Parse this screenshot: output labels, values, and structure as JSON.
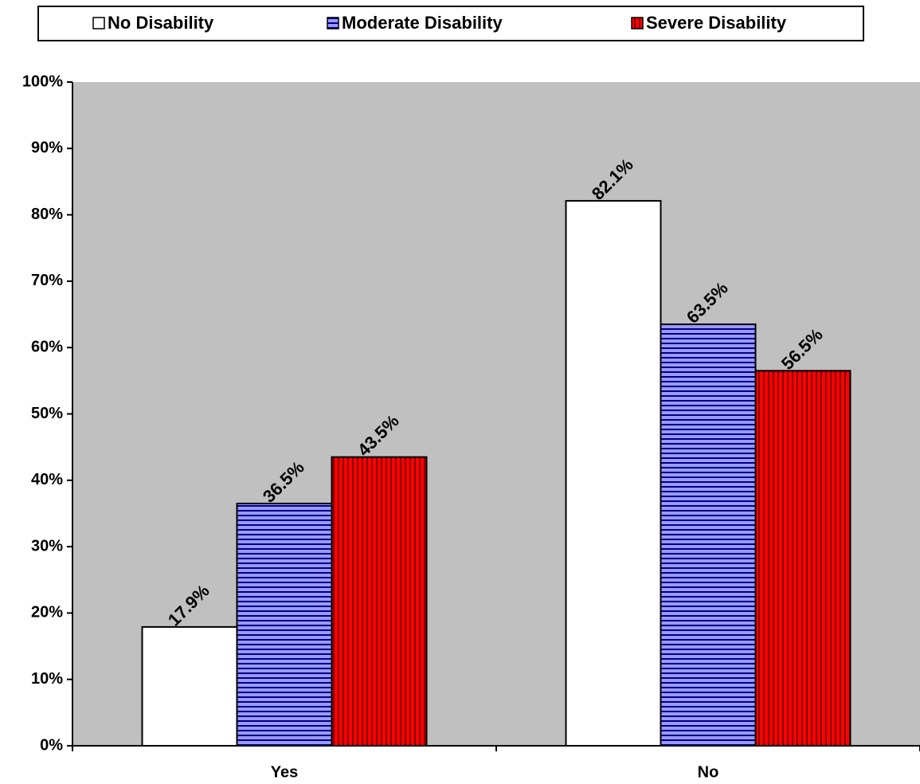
{
  "chart_data": {
    "type": "bar",
    "title": "",
    "xlabel": "",
    "ylabel": "",
    "categories": [
      "Yes",
      "No"
    ],
    "series": [
      {
        "name": "No Disability",
        "values": [
          17.9,
          82.1
        ],
        "labels": [
          "17.9%",
          "82.1%"
        ],
        "color": "#ffffff",
        "pattern": "none"
      },
      {
        "name": "Moderate Disability",
        "values": [
          36.5,
          63.5
        ],
        "labels": [
          "36.5%",
          "63.5%"
        ],
        "color": "#9999ff",
        "pattern": "horizontal-stripes"
      },
      {
        "name": "Severe Disability",
        "values": [
          43.5,
          56.5
        ],
        "labels": [
          "43.5%",
          "56.5%"
        ],
        "color": "#ff0000",
        "pattern": "vertical-stripes"
      }
    ],
    "ylim": [
      0,
      100
    ],
    "yticks": [
      0,
      10,
      20,
      30,
      40,
      50,
      60,
      70,
      80,
      90,
      100
    ],
    "ytick_labels": [
      "0%",
      "10%",
      "20%",
      "30%",
      "40%",
      "50%",
      "60%",
      "70%",
      "80%",
      "90%",
      "100%"
    ],
    "grid": false,
    "plot_background": "#c0c0c0",
    "legend_position": "top"
  }
}
